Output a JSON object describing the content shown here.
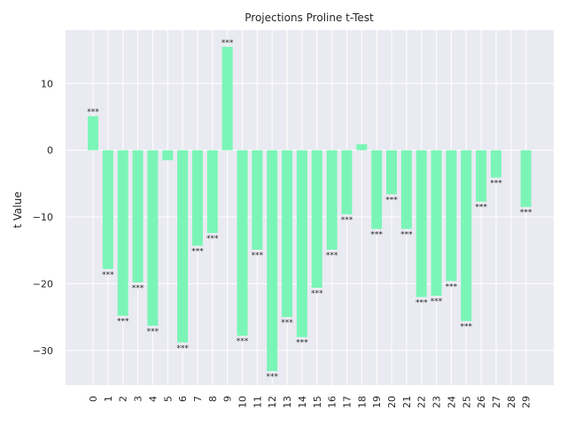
{
  "chart_data": {
    "type": "bar",
    "title": "Projections Proline t-Test",
    "xlabel": "",
    "ylabel": "t Value",
    "categories": [
      "0",
      "1",
      "2",
      "3",
      "4",
      "5",
      "6",
      "7",
      "8",
      "9",
      "10",
      "11",
      "12",
      "13",
      "14",
      "15",
      "16",
      "17",
      "18",
      "19",
      "20",
      "21",
      "22",
      "23",
      "24",
      "25",
      "26",
      "27",
      "28",
      "29"
    ],
    "values": [
      5.1,
      -17.8,
      -24.8,
      -19.8,
      -26.3,
      -1.5,
      -28.8,
      -14.3,
      -12.4,
      15.5,
      -27.8,
      -14.9,
      -33.1,
      -25.0,
      -28.0,
      -20.6,
      -14.9,
      -9.6,
      0.9,
      -11.8,
      -6.6,
      -11.8,
      -22.0,
      -21.8,
      -19.6,
      -25.6,
      -7.7,
      -4.1,
      0.0,
      -8.5
    ],
    "significance": [
      "***",
      "***",
      "***",
      "***",
      "***",
      "",
      "***",
      "***",
      "***",
      "***",
      "***",
      "***",
      "***",
      "***",
      "***",
      "***",
      "***",
      "***",
      "",
      "***",
      "***",
      "***",
      "***",
      "***",
      "***",
      "***",
      "***",
      "***",
      "",
      "***"
    ],
    "ylim": [
      -35.2,
      18
    ],
    "yticks": [
      10,
      0,
      -10,
      -20,
      -30
    ],
    "ytick_labels": [
      "10",
      "0",
      "−10",
      "−20",
      "−30"
    ],
    "grid": true,
    "colors": {
      "bar": "#7bf5b7",
      "background": "#eaeaf2",
      "grid": "#ffffff",
      "text": "#262626"
    }
  }
}
